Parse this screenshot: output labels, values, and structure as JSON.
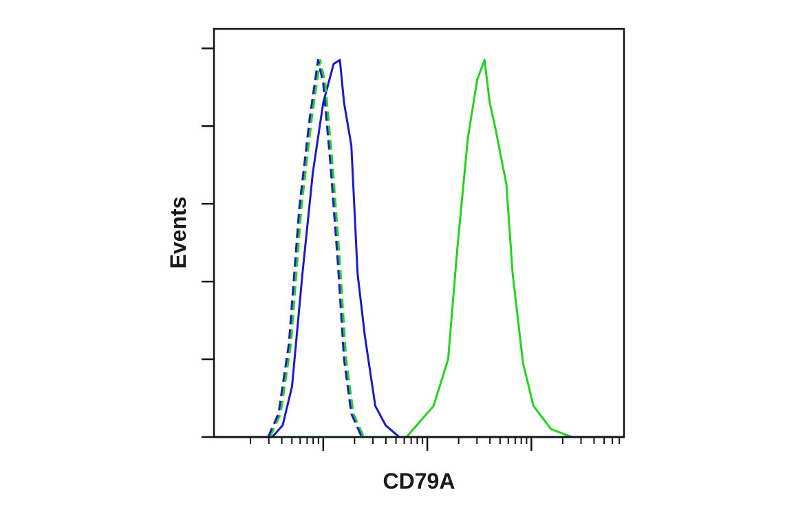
{
  "chart_data": {
    "type": "line",
    "xlabel": "CD79A",
    "ylabel": "Events",
    "xlim": [
      0.95,
      4.89
    ],
    "ylim": [
      0,
      105
    ],
    "xticks": [
      2,
      3,
      4
    ],
    "xminorticks": [
      1.301,
      1.477,
      1.602,
      1.699,
      1.778,
      1.845,
      1.903,
      1.954,
      2.301,
      2.477,
      2.602,
      2.699,
      2.778,
      2.845,
      2.903,
      2.954,
      3.301,
      3.477,
      3.602,
      3.699,
      3.778,
      3.845,
      3.903,
      3.954,
      4.301,
      4.477,
      4.602,
      4.699,
      4.778,
      4.845
    ],
    "yticks": [
      0,
      20,
      40,
      60,
      80,
      100
    ],
    "series": [
      {
        "color": "#22d41e",
        "dash": false,
        "x": [
          0.95,
          2.8,
          3.06,
          3.2,
          3.29,
          3.39,
          3.48,
          3.55,
          3.6,
          3.65,
          3.76,
          3.82,
          3.92,
          4.02,
          4.19,
          4.39,
          4.89
        ],
        "values": [
          0,
          0,
          8,
          20,
          49,
          77,
          92,
          97,
          86,
          80,
          65,
          42,
          19,
          8,
          2,
          0,
          0
        ]
      },
      {
        "color": "#1a1acb",
        "dash": false,
        "x": [
          0.95,
          1.51,
          1.61,
          1.7,
          1.8,
          1.9,
          2.0,
          2.1,
          2.16,
          2.2,
          2.27,
          2.33,
          2.4,
          2.5,
          2.6,
          2.73,
          4.89
        ],
        "values": [
          0,
          0,
          3,
          13,
          42,
          68,
          86,
          96,
          97,
          86,
          75,
          42,
          26,
          8,
          3,
          0,
          0
        ]
      },
      {
        "color": "#22d41e",
        "dash": true,
        "x": [
          1.49,
          1.59,
          1.69,
          1.79,
          1.89,
          1.97,
          2.02,
          2.09,
          2.16,
          2.22,
          2.29,
          2.39
        ],
        "values": [
          0,
          6,
          24,
          59,
          82,
          97,
          91,
          70,
          45,
          20,
          6,
          0
        ]
      },
      {
        "color": "#1a1acb",
        "dash": true,
        "x": [
          1.47,
          1.57,
          1.67,
          1.77,
          1.87,
          1.95,
          2.0,
          2.07,
          2.14,
          2.2,
          2.27,
          2.37
        ],
        "values": [
          0,
          6,
          24,
          59,
          82,
          97,
          91,
          70,
          45,
          20,
          6,
          0
        ]
      }
    ]
  }
}
